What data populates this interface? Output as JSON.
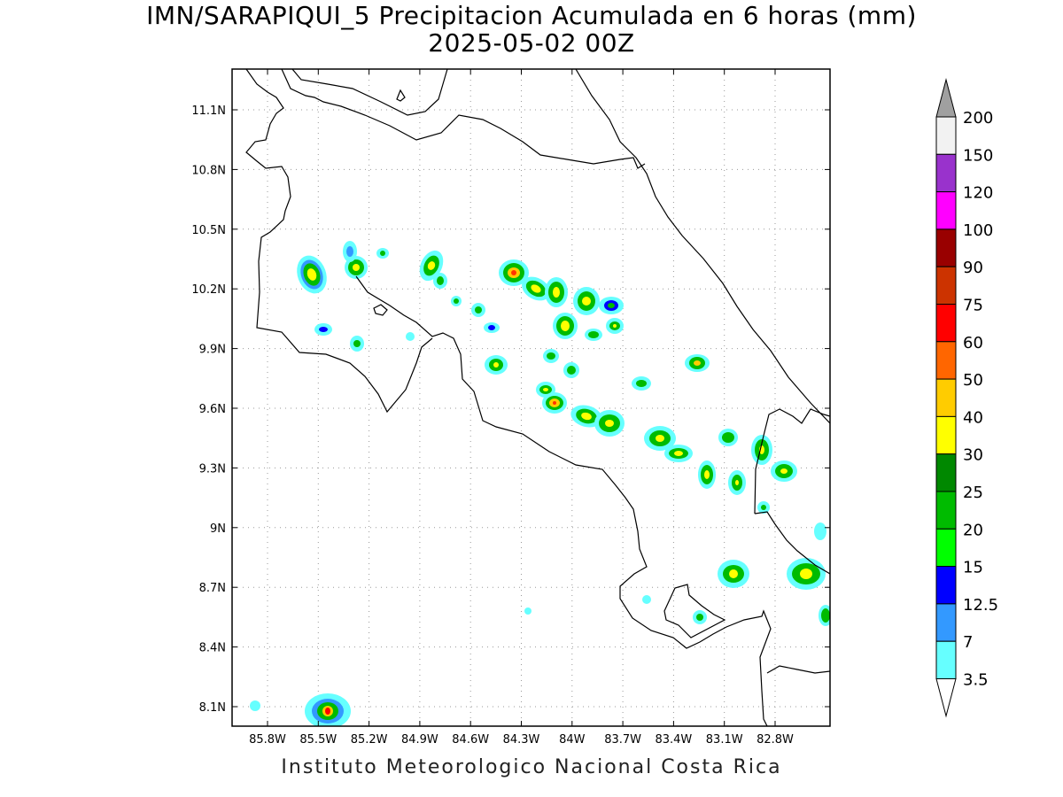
{
  "title_line1": "IMN/SARAPIQUI_5 Precipitacion Acumulada en 6 horas (mm)",
  "title_line2": "2025-05-02 00Z",
  "footer": "Instituto Meteorologico Nacional Costa Rica",
  "map": {
    "lon_range": [
      -86.0,
      -83.0
    ],
    "lat_range": [
      8.0,
      11.3
    ],
    "lon_ticks": [
      "85.8W",
      "85.5W",
      "85.2W",
      "84.9W",
      "84.6W",
      "84.3W",
      "84W",
      "83.7W",
      "83.4W",
      "83.1W",
      "82.8W"
    ],
    "lat_ticks": [
      "11.1N",
      "10.8N",
      "10.5N",
      "10.2N",
      "9.9N",
      "9.6N",
      "9.3N",
      "9N",
      "8.7N",
      "8.4N",
      "8.1N"
    ],
    "grid": "dotted"
  },
  "colorbar": {
    "labels": [
      "200",
      "150",
      "120",
      "100",
      "90",
      "75",
      "60",
      "50",
      "40",
      "30",
      "25",
      "20",
      "15",
      "12.5",
      "7",
      "3.5"
    ],
    "colors": [
      "#f2f2f2",
      "#9932cc",
      "#ff00ff",
      "#990000",
      "#cc3300",
      "#ff0000",
      "#ff6600",
      "#ffcc00",
      "#ffff00",
      "#008800",
      "#00bb00",
      "#00ff00",
      "#0000ff",
      "#3399ff",
      "#66ffff"
    ],
    "over_color": "#a0a0a0"
  }
}
